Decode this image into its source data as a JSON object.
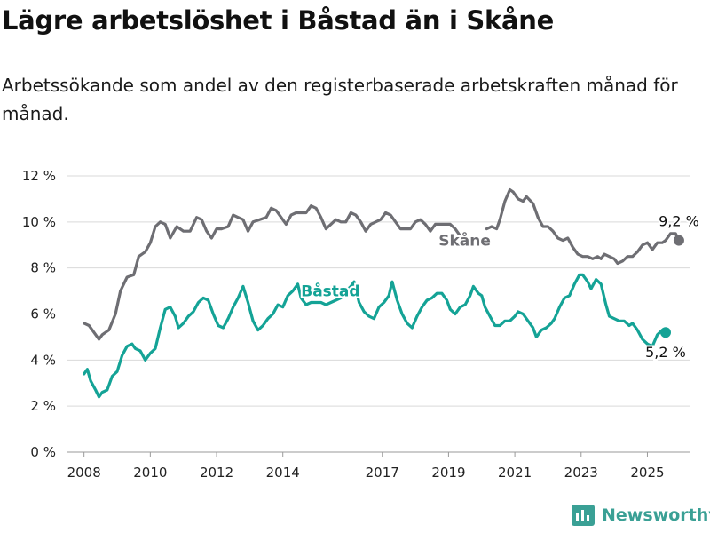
{
  "header": {
    "title": "Lägre arbetslöshet i Båstad än i Skåne",
    "subtitle": "Arbetssökande som andel av den registerbaserade arbetskraften månad för månad."
  },
  "brand": {
    "name": "Newsworthy",
    "icon": "newsworthy-logo-icon",
    "color": "#3aa095"
  },
  "chart_data": {
    "type": "line",
    "title": "Lägre arbetslöshet i Båstad än i Skåne",
    "xlabel": "",
    "ylabel": "",
    "xlim": [
      2007.5,
      2026.3
    ],
    "ylim": [
      0,
      12
    ],
    "grid": true,
    "y_ticks": [
      {
        "value": 0,
        "label": "0 %"
      },
      {
        "value": 2,
        "label": "2 %"
      },
      {
        "value": 4,
        "label": "4 %"
      },
      {
        "value": 6,
        "label": "6 %"
      },
      {
        "value": 8,
        "label": "8 %"
      },
      {
        "value": 10,
        "label": "10 %"
      },
      {
        "value": 12,
        "label": "12 %"
      }
    ],
    "x_ticks": [
      {
        "value": 2008,
        "label": "2008"
      },
      {
        "value": 2010,
        "label": "2010"
      },
      {
        "value": 2012,
        "label": "2012"
      },
      {
        "value": 2014,
        "label": "2014"
      },
      {
        "value": 2017,
        "label": "2017"
      },
      {
        "value": 2019,
        "label": "2019"
      },
      {
        "value": 2021,
        "label": "2021"
      },
      {
        "value": 2023,
        "label": "2023"
      },
      {
        "value": 2025,
        "label": "2025"
      }
    ],
    "series": [
      {
        "name": "Skåne",
        "color": "#6e6e73",
        "label_position": [
          2018.7,
          9.2
        ],
        "end_label": "9,2 %",
        "points": [
          [
            2008.0,
            5.6
          ],
          [
            2008.15,
            5.5
          ],
          [
            2008.3,
            5.2
          ],
          [
            2008.45,
            4.9
          ],
          [
            2008.55,
            5.1
          ],
          [
            2008.75,
            5.3
          ],
          [
            2008.95,
            6.0
          ],
          [
            2009.1,
            7.0
          ],
          [
            2009.3,
            7.6
          ],
          [
            2009.5,
            7.7
          ],
          [
            2009.65,
            8.5
          ],
          [
            2009.85,
            8.7
          ],
          [
            2010.0,
            9.1
          ],
          [
            2010.15,
            9.8
          ],
          [
            2010.3,
            10.0
          ],
          [
            2010.45,
            9.9
          ],
          [
            2010.6,
            9.3
          ],
          [
            2010.8,
            9.8
          ],
          [
            2011.0,
            9.6
          ],
          [
            2011.2,
            9.6
          ],
          [
            2011.4,
            10.2
          ],
          [
            2011.55,
            10.1
          ],
          [
            2011.7,
            9.6
          ],
          [
            2011.85,
            9.3
          ],
          [
            2012.0,
            9.7
          ],
          [
            2012.15,
            9.7
          ],
          [
            2012.35,
            9.8
          ],
          [
            2012.5,
            10.3
          ],
          [
            2012.65,
            10.2
          ],
          [
            2012.8,
            10.1
          ],
          [
            2012.95,
            9.6
          ],
          [
            2013.1,
            10.0
          ],
          [
            2013.3,
            10.1
          ],
          [
            2013.5,
            10.2
          ],
          [
            2013.65,
            10.6
          ],
          [
            2013.8,
            10.5
          ],
          [
            2013.95,
            10.2
          ],
          [
            2014.1,
            9.9
          ],
          [
            2014.25,
            10.3
          ],
          [
            2014.4,
            10.4
          ],
          [
            2014.55,
            10.4
          ],
          [
            2014.7,
            10.4
          ],
          [
            2014.85,
            10.7
          ],
          [
            2015.0,
            10.6
          ],
          [
            2015.15,
            10.2
          ],
          [
            2015.3,
            9.7
          ],
          [
            2015.45,
            9.9
          ],
          [
            2015.6,
            10.1
          ],
          [
            2015.75,
            10.0
          ],
          [
            2015.9,
            10.0
          ],
          [
            2016.05,
            10.4
          ],
          [
            2016.2,
            10.3
          ],
          [
            2016.35,
            10.0
          ],
          [
            2016.5,
            9.6
          ],
          [
            2016.65,
            9.9
          ],
          [
            2016.8,
            10.0
          ],
          [
            2016.95,
            10.1
          ],
          [
            2017.1,
            10.4
          ],
          [
            2017.25,
            10.3
          ],
          [
            2017.4,
            10.0
          ],
          [
            2017.55,
            9.7
          ],
          [
            2017.7,
            9.7
          ],
          [
            2017.85,
            9.7
          ],
          [
            2018.0,
            10.0
          ],
          [
            2018.15,
            10.1
          ],
          [
            2018.3,
            9.9
          ],
          [
            2018.45,
            9.6
          ],
          [
            2018.6,
            9.9
          ],
          [
            2018.75,
            9.9
          ],
          [
            2018.9,
            9.9
          ],
          [
            2019.05,
            9.9
          ],
          [
            2019.2,
            9.7
          ],
          [
            2019.35,
            9.4
          ],
          [
            2019.5,
            9.1
          ]
        ],
        "points_segment2": [
          [
            2020.15,
            9.7
          ],
          [
            2020.3,
            9.8
          ],
          [
            2020.45,
            9.7
          ],
          [
            2020.55,
            10.1
          ],
          [
            2020.7,
            10.9
          ],
          [
            2020.85,
            11.4
          ],
          [
            2020.95,
            11.3
          ],
          [
            2021.1,
            11.0
          ],
          [
            2021.25,
            10.9
          ],
          [
            2021.35,
            11.1
          ],
          [
            2021.55,
            10.8
          ],
          [
            2021.7,
            10.2
          ],
          [
            2021.85,
            9.8
          ],
          [
            2022.0,
            9.8
          ],
          [
            2022.15,
            9.6
          ],
          [
            2022.3,
            9.3
          ],
          [
            2022.45,
            9.2
          ],
          [
            2022.6,
            9.3
          ],
          [
            2022.75,
            8.9
          ],
          [
            2022.9,
            8.6
          ],
          [
            2023.05,
            8.5
          ],
          [
            2023.2,
            8.5
          ],
          [
            2023.35,
            8.4
          ],
          [
            2023.5,
            8.5
          ],
          [
            2023.6,
            8.4
          ],
          [
            2023.7,
            8.6
          ],
          [
            2023.85,
            8.5
          ],
          [
            2024.0,
            8.4
          ],
          [
            2024.1,
            8.2
          ],
          [
            2024.25,
            8.3
          ],
          [
            2024.4,
            8.5
          ],
          [
            2024.55,
            8.5
          ],
          [
            2024.7,
            8.7
          ],
          [
            2024.85,
            9.0
          ],
          [
            2025.0,
            9.1
          ],
          [
            2025.15,
            8.8
          ],
          [
            2025.3,
            9.1
          ],
          [
            2025.45,
            9.1
          ],
          [
            2025.55,
            9.2
          ],
          [
            2025.7,
            9.5
          ],
          [
            2025.85,
            9.5
          ],
          [
            2025.95,
            9.2
          ]
        ]
      },
      {
        "name": "Båstad",
        "color": "#14a396",
        "label_position": [
          2014.55,
          7.0
        ],
        "end_label": "5,2 %",
        "points": [
          [
            2008.0,
            3.4
          ],
          [
            2008.1,
            3.6
          ],
          [
            2008.2,
            3.1
          ],
          [
            2008.35,
            2.7
          ],
          [
            2008.45,
            2.4
          ],
          [
            2008.55,
            2.6
          ],
          [
            2008.7,
            2.7
          ],
          [
            2008.85,
            3.3
          ],
          [
            2009.0,
            3.5
          ],
          [
            2009.15,
            4.2
          ],
          [
            2009.3,
            4.6
          ],
          [
            2009.45,
            4.7
          ],
          [
            2009.55,
            4.5
          ],
          [
            2009.7,
            4.4
          ],
          [
            2009.85,
            4.0
          ],
          [
            2010.0,
            4.3
          ],
          [
            2010.15,
            4.5
          ],
          [
            2010.3,
            5.4
          ],
          [
            2010.45,
            6.2
          ],
          [
            2010.6,
            6.3
          ],
          [
            2010.75,
            5.9
          ],
          [
            2010.85,
            5.4
          ],
          [
            2011.0,
            5.6
          ],
          [
            2011.15,
            5.9
          ],
          [
            2011.3,
            6.1
          ],
          [
            2011.45,
            6.5
          ],
          [
            2011.6,
            6.7
          ],
          [
            2011.75,
            6.6
          ],
          [
            2011.9,
            6.0
          ],
          [
            2012.05,
            5.5
          ],
          [
            2012.2,
            5.4
          ],
          [
            2012.35,
            5.8
          ],
          [
            2012.5,
            6.3
          ],
          [
            2012.65,
            6.7
          ],
          [
            2012.8,
            7.2
          ],
          [
            2012.95,
            6.5
          ],
          [
            2013.1,
            5.7
          ],
          [
            2013.25,
            5.3
          ],
          [
            2013.4,
            5.5
          ],
          [
            2013.55,
            5.8
          ],
          [
            2013.7,
            6.0
          ],
          [
            2013.85,
            6.4
          ],
          [
            2014.0,
            6.3
          ],
          [
            2014.15,
            6.8
          ],
          [
            2014.3,
            7.0
          ],
          [
            2014.45,
            7.3
          ],
          [
            2014.55,
            6.7
          ],
          [
            2014.7,
            6.4
          ],
          [
            2014.85,
            6.5
          ],
          [
            2015.0,
            6.5
          ],
          [
            2015.15,
            6.5
          ],
          [
            2015.3,
            6.4
          ],
          [
            2015.45,
            6.5
          ],
          [
            2015.6,
            6.6
          ],
          [
            2015.75,
            6.7
          ],
          [
            2015.9,
            7.0
          ],
          [
            2016.05,
            7.2
          ],
          [
            2016.15,
            7.4
          ],
          [
            2016.3,
            6.5
          ],
          [
            2016.45,
            6.1
          ],
          [
            2016.6,
            5.9
          ],
          [
            2016.75,
            5.8
          ],
          [
            2016.9,
            6.3
          ],
          [
            2017.05,
            6.5
          ],
          [
            2017.2,
            6.8
          ],
          [
            2017.3,
            7.4
          ],
          [
            2017.45,
            6.6
          ],
          [
            2017.6,
            6.0
          ],
          [
            2017.75,
            5.6
          ],
          [
            2017.9,
            5.4
          ],
          [
            2018.05,
            5.9
          ],
          [
            2018.2,
            6.3
          ],
          [
            2018.35,
            6.6
          ],
          [
            2018.5,
            6.7
          ],
          [
            2018.65,
            6.9
          ],
          [
            2018.8,
            6.9
          ],
          [
            2018.95,
            6.6
          ],
          [
            2019.05,
            6.2
          ],
          [
            2019.2,
            6.0
          ],
          [
            2019.35,
            6.3
          ],
          [
            2019.5,
            6.4
          ],
          [
            2019.65,
            6.8
          ],
          [
            2019.75,
            7.2
          ],
          [
            2019.9,
            6.9
          ],
          [
            2020.0,
            6.8
          ],
          [
            2020.1,
            6.3
          ],
          [
            2020.25,
            5.9
          ],
          [
            2020.4,
            5.5
          ],
          [
            2020.55,
            5.5
          ],
          [
            2020.7,
            5.7
          ],
          [
            2020.85,
            5.7
          ],
          [
            2021.0,
            5.9
          ],
          [
            2021.1,
            6.1
          ],
          [
            2021.25,
            6.0
          ],
          [
            2021.4,
            5.7
          ],
          [
            2021.55,
            5.4
          ],
          [
            2021.65,
            5.0
          ],
          [
            2021.8,
            5.3
          ],
          [
            2021.95,
            5.4
          ],
          [
            2022.1,
            5.6
          ],
          [
            2022.2,
            5.8
          ],
          [
            2022.35,
            6.3
          ],
          [
            2022.5,
            6.7
          ],
          [
            2022.65,
            6.8
          ],
          [
            2022.8,
            7.3
          ],
          [
            2022.95,
            7.7
          ],
          [
            2023.05,
            7.7
          ],
          [
            2023.2,
            7.4
          ],
          [
            2023.3,
            7.1
          ],
          [
            2023.45,
            7.5
          ],
          [
            2023.6,
            7.3
          ],
          [
            2023.75,
            6.4
          ],
          [
            2023.85,
            5.9
          ],
          [
            2024.0,
            5.8
          ],
          [
            2024.15,
            5.7
          ],
          [
            2024.3,
            5.7
          ],
          [
            2024.45,
            5.5
          ],
          [
            2024.55,
            5.6
          ],
          [
            2024.7,
            5.3
          ],
          [
            2024.85,
            4.9
          ],
          [
            2025.0,
            4.7
          ],
          [
            2025.15,
            4.6
          ],
          [
            2025.3,
            5.1
          ],
          [
            2025.45,
            5.3
          ],
          [
            2025.55,
            5.2
          ]
        ],
        "points_segment2": []
      }
    ]
  }
}
